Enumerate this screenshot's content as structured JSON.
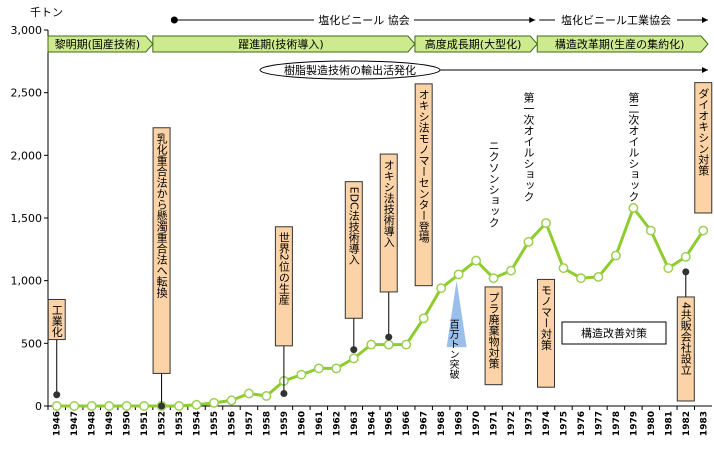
{
  "chart_data": {
    "type": "line",
    "title": "",
    "unit_label": "千トン",
    "xlabel": "",
    "ylabel": "",
    "ylim": [
      0,
      3000
    ],
    "yticks": [
      0,
      500,
      1000,
      1500,
      2000,
      2500,
      3000
    ],
    "ytick_labels": [
      "0",
      "500",
      "1,000",
      "1,500",
      "2,000",
      "2,500",
      "3,000"
    ],
    "grid": false,
    "legend": "none",
    "line_color": "#8fcc2e",
    "x": [
      1946,
      1947,
      1948,
      1949,
      1950,
      1951,
      1952,
      1953,
      1954,
      1955,
      1956,
      1957,
      1958,
      1959,
      1960,
      1961,
      1962,
      1963,
      1964,
      1965,
      1966,
      1967,
      1968,
      1969,
      1970,
      1971,
      1972,
      1973,
      1974,
      1975,
      1976,
      1977,
      1978,
      1979,
      1980,
      1981,
      1982,
      1983
    ],
    "values": [
      0,
      0,
      0,
      0,
      0,
      0,
      0,
      0,
      10,
      25,
      45,
      100,
      80,
      200,
      250,
      300,
      300,
      380,
      490,
      490,
      490,
      700,
      940,
      1050,
      1160,
      1020,
      1080,
      1310,
      1460,
      1100,
      1020,
      1030,
      1200,
      1580,
      1400,
      1100,
      1190,
      1400
    ],
    "x_tick_labels": [
      "1946",
      "1947",
      "1948",
      "1949",
      "1950",
      "1951",
      "1952",
      "1953",
      "1954",
      "1955",
      "1956",
      "1957",
      "1958",
      "1959",
      "1960",
      "1961",
      "1962",
      "1963",
      "1964",
      "1965",
      "1966",
      "1967",
      "1968",
      "1969",
      "1970",
      "1971",
      "1972",
      "1973",
      "1974",
      "1975",
      "1976",
      "1977",
      "1978",
      "1979",
      "1980",
      "1981",
      "1982",
      "1983"
    ],
    "phase_arrows": [
      {
        "label": "黎明期(国産技術)",
        "start_year": 1946,
        "end_year": 1952
      },
      {
        "label": "躍進期(技術導入)",
        "start_year": 1952,
        "end_year": 1967
      },
      {
        "label": "高度成長期(大型化)",
        "start_year": 1967,
        "end_year": 1974
      },
      {
        "label": "構造改革期(生産の集約化)",
        "start_year": 1974,
        "end_year": 1984
      }
    ],
    "associations": [
      {
        "label": "塩化ビニール 協会",
        "start_year": 1953
      },
      {
        "label": "塩化ビニール工業協会",
        "start_year": 1974
      }
    ],
    "export_banner": "樹脂製造技術の輸出活発化",
    "annotation_boxes": [
      {
        "label": "工業化",
        "year": 1946,
        "value_top": 850,
        "value_bottom": 530
      },
      {
        "label": "乳化重合法から懸濁重合法へ転換",
        "year": 1952,
        "value_top": 2220,
        "value_bottom": 260
      },
      {
        "label": "世界2位の生産",
        "year": 1959,
        "value_top": 1430,
        "value_bottom": 480
      },
      {
        "label": "EDC法技術導入",
        "year": 1963,
        "value_top": 1790,
        "value_bottom": 700
      },
      {
        "label": "オキシ法技術導入",
        "year": 1965,
        "value_top": 2010,
        "value_bottom": 910
      },
      {
        "label": "オキシ法モノマーセンター登場",
        "year": 1967,
        "value_top": 2570,
        "value_bottom": 960
      },
      {
        "label": "プラ廃棄物対策",
        "year": 1971,
        "value_top": 950,
        "value_bottom": 170
      },
      {
        "label": "モノマー対策",
        "year": 1974,
        "value_top": 1010,
        "value_bottom": 150
      },
      {
        "label": "4共販会社設立",
        "year": 1982,
        "value_top": 870,
        "value_bottom": 40
      },
      {
        "label": "ダイオキシン対策",
        "year": 1983,
        "value_top": 2580,
        "value_bottom": 1540
      }
    ],
    "event_texts": [
      {
        "label": "ニクソンショック",
        "year": 1971
      },
      {
        "label": "第一次オイルショック",
        "year": 1973
      },
      {
        "label": "第二次オイルショック",
        "year": 1979
      }
    ],
    "milestone": {
      "label": "百万トン突破",
      "year": 1969
    },
    "measures_box": "構造改善対策",
    "colors": {
      "phase_fill": "#cdea8f",
      "phase_border": "#3f6b12",
      "box_fill": "#fcd3a6",
      "box_border": "#333333",
      "milestone_fill": "#8fb8e8"
    }
  }
}
